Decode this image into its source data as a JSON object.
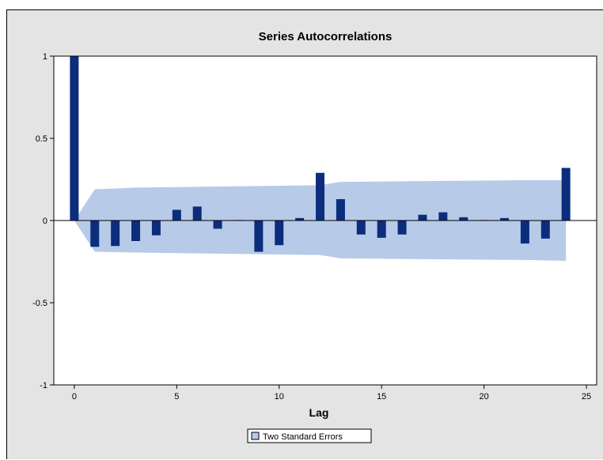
{
  "chart_data": {
    "type": "bar",
    "title": "Series Autocorrelations",
    "xlabel": "Lag",
    "ylabel": "",
    "xlim": [
      -1,
      25.5
    ],
    "ylim": [
      -1,
      1
    ],
    "xticks": [
      0,
      5,
      10,
      15,
      20,
      25
    ],
    "yticks": [
      1,
      0.5,
      0,
      -0.5,
      -1
    ],
    "ytick_labels": [
      "1",
      "0.5",
      "0",
      "-0.5",
      "-1"
    ],
    "grid": false,
    "series": [
      {
        "lags": [
          0,
          1,
          2,
          3,
          4,
          5,
          6,
          7,
          8,
          9,
          10,
          11,
          12,
          13,
          14,
          15,
          16,
          17,
          18,
          19,
          20,
          21,
          22,
          23,
          24
        ],
        "values": [
          1.0,
          -0.16,
          -0.155,
          -0.125,
          -0.09,
          0.065,
          0.085,
          -0.05,
          0.003,
          -0.19,
          -0.15,
          0.015,
          0.29,
          0.13,
          -0.085,
          -0.105,
          -0.085,
          0.035,
          0.05,
          0.02,
          0.003,
          0.015,
          -0.14,
          -0.11,
          0.32
        ]
      }
    ],
    "band": {
      "name": "Two Standard Errors",
      "x": [
        0,
        1,
        3,
        6,
        9,
        12,
        13,
        17,
        22,
        24
      ],
      "upper": [
        0.0,
        0.19,
        0.2,
        0.205,
        0.21,
        0.215,
        0.235,
        0.24,
        0.245,
        0.245
      ],
      "lower": [
        0.0,
        -0.19,
        -0.195,
        -0.2,
        -0.205,
        -0.21,
        -0.23,
        -0.235,
        -0.24,
        -0.245
      ]
    },
    "legend": {
      "position": "bottom",
      "items": [
        "Two Standard Errors"
      ]
    },
    "colors": {
      "bar": "#0b2d7c",
      "band": "#b7cae8",
      "frame_bg": "#e4e4e4",
      "plot_bg": "#ffffff"
    }
  }
}
